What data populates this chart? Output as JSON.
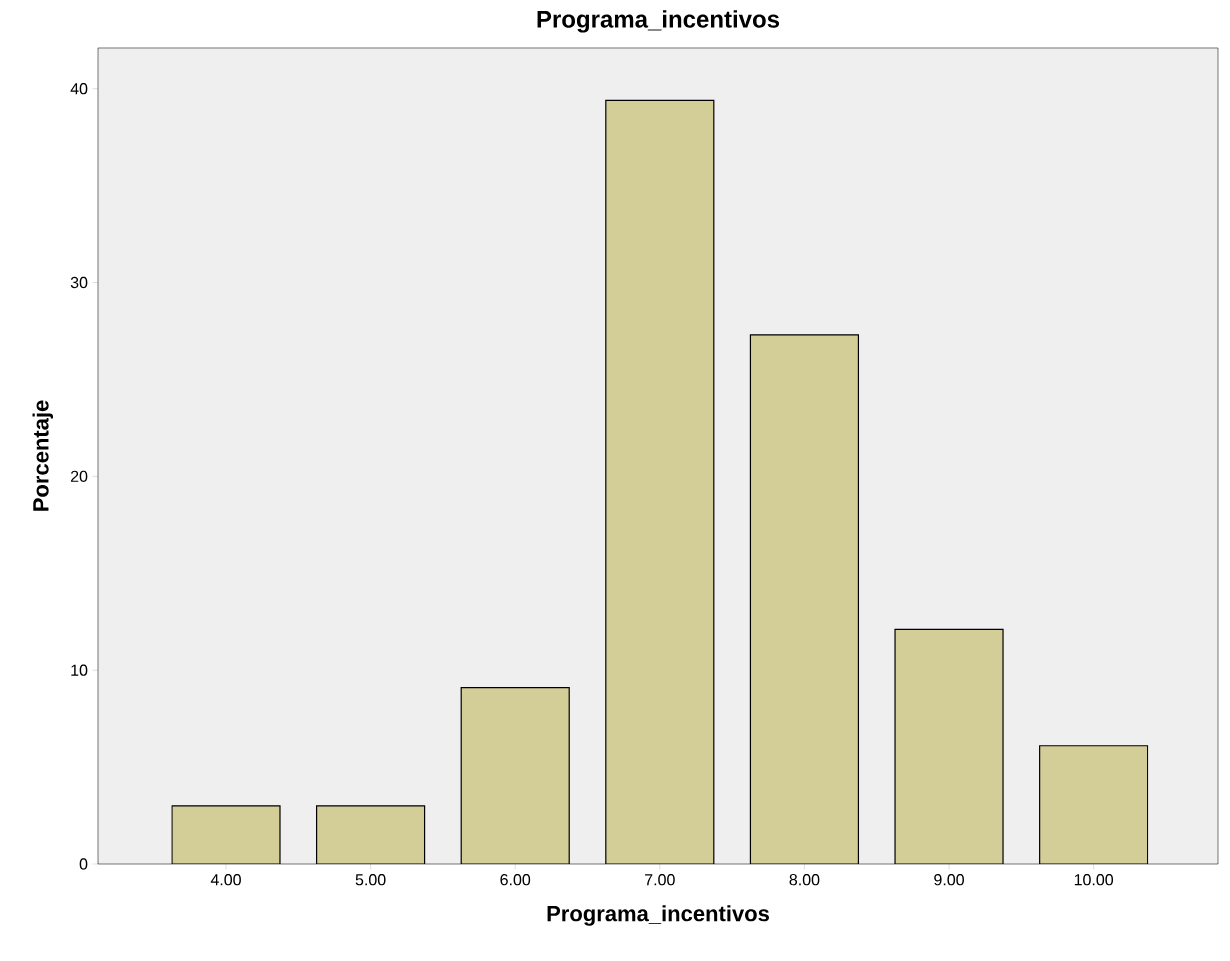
{
  "chart_data": {
    "type": "bar",
    "title": "Programa_incentivos",
    "xlabel": "Programa_incentivos",
    "ylabel": "Porcentaje",
    "categories": [
      "4.00",
      "5.00",
      "6.00",
      "7.00",
      "8.00",
      "9.00",
      "10.00"
    ],
    "values": [
      3.0,
      3.0,
      9.1,
      39.4,
      27.3,
      12.1,
      6.1
    ],
    "color": "#d3ce97",
    "ylim": [
      0,
      42.1
    ],
    "yticks": [
      0,
      10,
      20,
      30,
      40
    ],
    "grid": false
  }
}
